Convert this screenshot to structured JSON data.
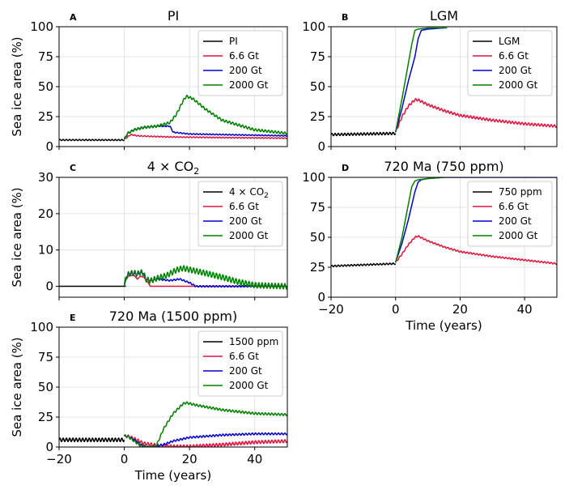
{
  "chart_data": [
    {
      "id": "A",
      "type": "line",
      "panel_label": "A",
      "title": "PI",
      "ylabel": "Sea ice area (%)",
      "xlabel": "",
      "xlim": [
        -20,
        50
      ],
      "ylim": [
        0,
        100
      ],
      "xticks": [
        -20,
        0,
        20,
        40
      ],
      "yticks": [
        0,
        25,
        50,
        75,
        100
      ],
      "xtick_labels": [
        "",
        "",
        "",
        ""
      ],
      "ytick_labels": [
        "0",
        "25",
        "50",
        "75",
        "100"
      ],
      "grid": true,
      "legend": "top-right",
      "series": [
        {
          "name": "PI",
          "color": "#000000",
          "x": [
            -20,
            0
          ],
          "y": [
            5.5,
            5.5
          ],
          "osc": 1.0
        },
        {
          "name": "6.6 Gt",
          "color": "#dc143c",
          "x": [
            0,
            1,
            2,
            4,
            8,
            15,
            30,
            50
          ],
          "y": [
            6,
            8,
            10,
            9,
            8.5,
            8,
            7.5,
            7
          ],
          "osc": 0.8
        },
        {
          "name": "200 Gt",
          "color": "#0000cd",
          "x": [
            0,
            1,
            3,
            6,
            10,
            14,
            15,
            20,
            30,
            50
          ],
          "y": [
            6,
            11,
            14,
            16,
            17,
            17,
            12,
            10.5,
            10,
            9
          ],
          "osc": 0.8
        },
        {
          "name": "2000 Gt",
          "color": "#008000",
          "x": [
            0,
            1,
            3,
            6,
            10,
            14,
            16,
            18,
            19,
            21,
            25,
            30,
            40,
            50
          ],
          "y": [
            6,
            11,
            14,
            16,
            17,
            20,
            27,
            38,
            42,
            40,
            31,
            22,
            14,
            11
          ],
          "osc": 2.0
        }
      ]
    },
    {
      "id": "B",
      "type": "line",
      "panel_label": "B",
      "title": "LGM",
      "ylabel": "",
      "xlabel": "",
      "xlim": [
        -20,
        50
      ],
      "ylim": [
        0,
        100
      ],
      "xticks": [
        -20,
        0,
        20,
        40
      ],
      "yticks": [
        0,
        25,
        50,
        75,
        100
      ],
      "xtick_labels": [
        "",
        "",
        "",
        ""
      ],
      "ytick_labels": [
        "0",
        "25",
        "50",
        "75",
        "100"
      ],
      "grid": true,
      "legend": "top-right",
      "series": [
        {
          "name": "LGM",
          "color": "#000000",
          "x": [
            -20,
            0
          ],
          "y": [
            10,
            11
          ],
          "osc": 2.0
        },
        {
          "name": "6.6 Gt",
          "color": "#dc143c",
          "x": [
            0,
            2,
            4,
            6,
            7,
            10,
            15,
            20,
            30,
            40,
            50
          ],
          "y": [
            12,
            25,
            34,
            39,
            39,
            35,
            30,
            26,
            22,
            19,
            17
          ],
          "osc": 2.0
        },
        {
          "name": "200 Gt",
          "color": "#0000cd",
          "x": [
            0,
            2,
            4,
            6,
            7,
            8,
            10,
            15
          ],
          "y": [
            12,
            32,
            55,
            75,
            90,
            97,
            98,
            99
          ],
          "osc": 0
        },
        {
          "name": "2000 Gt",
          "color": "#008000",
          "x": [
            0,
            2,
            4,
            5,
            6,
            7,
            10,
            16
          ],
          "y": [
            12,
            40,
            70,
            85,
            97,
            98,
            99,
            99
          ],
          "osc": 0
        }
      ]
    },
    {
      "id": "C",
      "type": "line",
      "panel_label": "C",
      "title": "4 × CO",
      "title_sub": "2",
      "ylabel": "Sea ice area (%)",
      "xlabel": "",
      "xlim": [
        -20,
        50
      ],
      "ylim": [
        -3,
        30
      ],
      "xticks": [
        -20,
        0,
        20,
        40
      ],
      "yticks": [
        0,
        10,
        20,
        30
      ],
      "xtick_labels": [
        "",
        "",
        "",
        ""
      ],
      "ytick_labels": [
        "0",
        "10",
        "20",
        "30"
      ],
      "grid": true,
      "legend": "top-right",
      "series": [
        {
          "name": "4 × CO",
          "name_sub": "2",
          "color": "#000000",
          "x": [
            -20,
            0.5
          ],
          "y": [
            0,
            0
          ],
          "osc": 0
        },
        {
          "name": "6.6 Gt",
          "color": "#dc143c",
          "x": [
            0,
            0.5,
            1.5,
            3,
            4,
            5,
            6,
            7,
            8,
            9,
            12,
            50
          ],
          "y": [
            0,
            2,
            3,
            3,
            2,
            2.8,
            2.5,
            1.5,
            0,
            0,
            0,
            0
          ],
          "osc": 0
        },
        {
          "name": "200 Gt",
          "color": "#0000cd",
          "x": [
            0,
            0.5,
            1.5,
            3,
            4,
            5,
            6,
            6.5,
            8,
            10,
            14,
            17,
            20,
            22,
            50
          ],
          "y": [
            0,
            2.5,
            3.5,
            3.5,
            3.3,
            3.8,
            3.5,
            2,
            1.5,
            2,
            1.6,
            2,
            1,
            0,
            0
          ],
          "osc": 0.4
        },
        {
          "name": "2000 Gt",
          "color": "#008000",
          "x": [
            0,
            0.5,
            1.5,
            3,
            4,
            5,
            6,
            6.5,
            8,
            10,
            13,
            16,
            18,
            20,
            25,
            30,
            35,
            40,
            50
          ],
          "y": [
            0,
            2.5,
            3.5,
            3.7,
            3.4,
            3.9,
            3.5,
            2,
            1.5,
            2.2,
            3,
            4.5,
            5,
            4.6,
            3.6,
            2.5,
            1.2,
            0.3,
            0
          ],
          "osc": 1.5
        }
      ]
    },
    {
      "id": "D",
      "type": "line",
      "panel_label": "D",
      "title": "720 Ma (750 ppm)",
      "ylabel": "",
      "xlabel": "Time (years)",
      "xlim": [
        -20,
        50
      ],
      "ylim": [
        0,
        100
      ],
      "xticks": [
        -20,
        0,
        20,
        40
      ],
      "yticks": [
        0,
        25,
        50,
        75,
        100
      ],
      "xtick_labels": [
        "−20",
        "0",
        "20",
        "40"
      ],
      "ytick_labels": [
        "0",
        "25",
        "50",
        "75",
        "100"
      ],
      "grid": true,
      "legend": "top-right",
      "series": [
        {
          "name": "750 ppm",
          "color": "#000000",
          "x": [
            -20,
            0
          ],
          "y": [
            26,
            28
          ],
          "osc": 1.2
        },
        {
          "name": "6.6 Gt",
          "color": "#dc143c",
          "x": [
            0,
            2,
            4,
            6,
            7,
            10,
            15,
            20,
            30,
            40,
            50
          ],
          "y": [
            29,
            36,
            44,
            50,
            51,
            47,
            42,
            38,
            34,
            31,
            28
          ],
          "osc": 1.2
        },
        {
          "name": "200 Gt",
          "color": "#0000cd",
          "x": [
            0,
            2,
            4,
            6,
            7,
            8,
            10,
            15,
            50
          ],
          "y": [
            29,
            45,
            65,
            88,
            96,
            98,
            99,
            100,
            100
          ],
          "osc": 0
        },
        {
          "name": "2000 Gt",
          "color": "#008000",
          "x": [
            0,
            2,
            4,
            5,
            6,
            7,
            10,
            15
          ],
          "y": [
            29,
            50,
            78,
            92,
            97,
            98,
            99,
            100
          ],
          "osc": 0
        }
      ]
    },
    {
      "id": "E",
      "type": "line",
      "panel_label": "E",
      "title": "720 Ma (1500 ppm)",
      "ylabel": "Sea ice area (%)",
      "xlabel": "Time (years)",
      "xlim": [
        -20,
        50
      ],
      "ylim": [
        0,
        100
      ],
      "xticks": [
        -20,
        0,
        20,
        40
      ],
      "yticks": [
        0,
        25,
        50,
        75,
        100
      ],
      "xtick_labels": [
        "−20",
        "0",
        "20",
        "40"
      ],
      "ytick_labels": [
        "0",
        "25",
        "50",
        "75",
        "100"
      ],
      "grid": true,
      "legend": "top-right",
      "series": [
        {
          "name": "1500 ppm",
          "color": "#000000",
          "x": [
            -20,
            0
          ],
          "y": [
            6,
            6
          ],
          "osc": 3.0
        },
        {
          "name": "6.6 Gt",
          "color": "#dc143c",
          "x": [
            0,
            1,
            3,
            6,
            10,
            15,
            20,
            30,
            40,
            50
          ],
          "y": [
            9,
            9,
            7,
            3,
            1.5,
            0.5,
            0.5,
            2,
            4,
            5
          ],
          "osc": 2.5
        },
        {
          "name": "200 Gt",
          "color": "#0000cd",
          "x": [
            0,
            1,
            3,
            5,
            7,
            9,
            12,
            15,
            20,
            30,
            40,
            50
          ],
          "y": [
            9,
            9,
            6,
            2,
            0,
            0,
            2,
            5,
            8,
            10,
            11,
            11
          ],
          "osc": 1.5
        },
        {
          "name": "2000 Gt",
          "color": "#008000",
          "x": [
            0,
            1,
            3,
            5,
            7,
            9,
            10,
            12,
            15,
            18,
            19,
            22,
            30,
            40,
            50
          ],
          "y": [
            9,
            9,
            5,
            1,
            0,
            0,
            2,
            15,
            28,
            36,
            37,
            35,
            31,
            28,
            27
          ],
          "osc": 1.8
        }
      ]
    }
  ]
}
